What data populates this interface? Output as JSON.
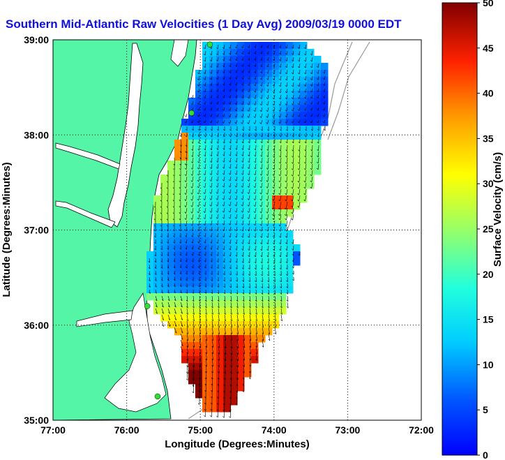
{
  "title": "Southern Mid-Atlantic Raw Velocities (1 Day Avg) 2009/03/19 0000 EDT",
  "axes": {
    "xlabel": "Longitude (Degrees:Minutes)",
    "ylabel": "Latitude (Degrees:Minutes)",
    "x_ticks": [
      "77:00",
      "76:00",
      "75:00",
      "74:00",
      "73:00",
      "72:00"
    ],
    "y_ticks": [
      "39:00",
      "38:00",
      "37:00",
      "36:00",
      "35:00"
    ],
    "x_range": [
      -77,
      -72
    ],
    "y_range": [
      35,
      39
    ],
    "grid": "dotted"
  },
  "colorbar": {
    "label": "Surface Velocity (cm/s)",
    "ticks": [
      "0",
      "5",
      "10",
      "15",
      "20",
      "25",
      "30",
      "35",
      "40",
      "45",
      "50"
    ],
    "range": [
      0,
      50
    ],
    "colormap": "jet"
  },
  "colors": {
    "land": "#55f5a8",
    "title": "#1010dd",
    "coast": "#000000",
    "isobath": "#999999",
    "station": "#33dd33"
  },
  "stations": [
    {
      "lon": -74.87,
      "lat": 38.95
    },
    {
      "lon": -75.12,
      "lat": 38.23
    },
    {
      "lon": -75.72,
      "lat": 36.2
    },
    {
      "lon": -75.58,
      "lat": 35.25
    }
  ]
}
